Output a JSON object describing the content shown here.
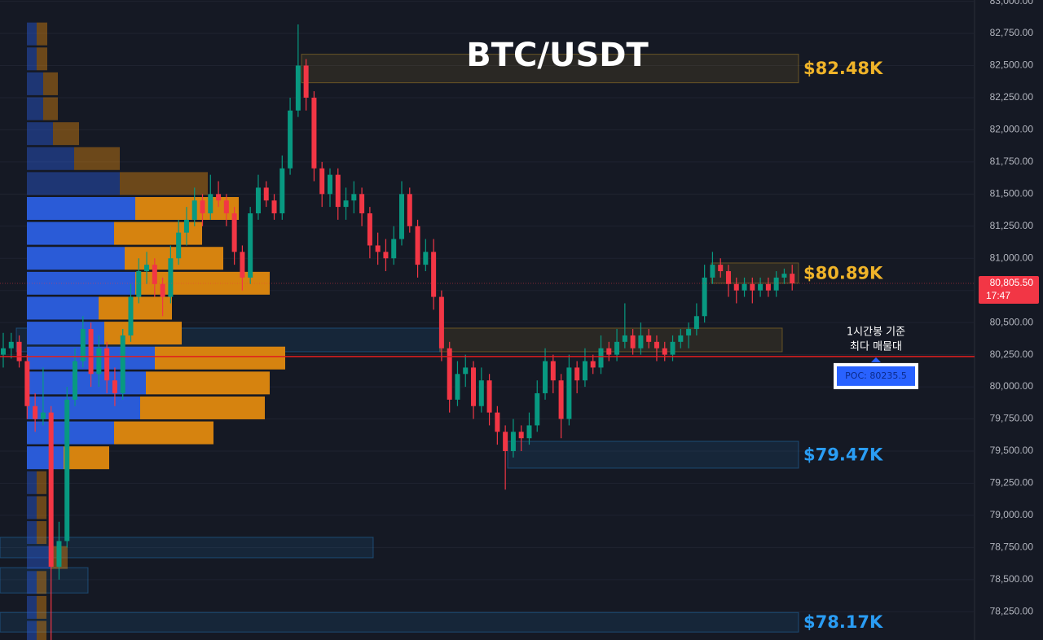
{
  "chart_data": {
    "type": "candlestick",
    "title": "BTC/USDT",
    "ylim": [
      78030,
      83010
    ],
    "yticks": [
      {
        "value": 83000,
        "label": "83,000.00"
      },
      {
        "value": 82750,
        "label": "82,750.00"
      },
      {
        "value": 82500,
        "label": "82,500.00"
      },
      {
        "value": 82250,
        "label": "82,250.00"
      },
      {
        "value": 82000,
        "label": "82,000.00"
      },
      {
        "value": 81750,
        "label": "81,750.00"
      },
      {
        "value": 81500,
        "label": "81,500.00"
      },
      {
        "value": 81250,
        "label": "81,250.00"
      },
      {
        "value": 81000,
        "label": "81,000.00"
      },
      {
        "value": 80750,
        "label": "80,750.00"
      },
      {
        "value": 80500,
        "label": "80,500.00"
      },
      {
        "value": 80250,
        "label": "80,250.00"
      },
      {
        "value": 80000,
        "label": "80,000.00"
      },
      {
        "value": 79750,
        "label": "79,750.00"
      },
      {
        "value": 79500,
        "label": "79,500.00"
      },
      {
        "value": 79250,
        "label": "79,250.00"
      },
      {
        "value": 79000,
        "label": "79,000.00"
      },
      {
        "value": 78750,
        "label": "78,750.00"
      },
      {
        "value": 78500,
        "label": "78,500.00"
      },
      {
        "value": 78250,
        "label": "78,250.00"
      }
    ],
    "grid": true,
    "up_color": "#089981",
    "down_color": "#f23645",
    "candles": [
      [
        80250,
        80420,
        80150,
        80300
      ],
      [
        80300,
        80420,
        80220,
        80350
      ],
      [
        80350,
        80400,
        80150,
        80200
      ],
      [
        80200,
        80250,
        79750,
        79850
      ],
      [
        79850,
        79950,
        79650,
        79750
      ],
      [
        79750,
        80150,
        79700,
        79800
      ],
      [
        79800,
        79850,
        78030,
        78600
      ],
      [
        78600,
        78950,
        78500,
        78800
      ],
      [
        78800,
        80000,
        78750,
        79900
      ],
      [
        79900,
        80300,
        79850,
        80200
      ],
      [
        80200,
        80550,
        80150,
        80450
      ],
      [
        80450,
        80500,
        80000,
        80100
      ],
      [
        80100,
        80400,
        80000,
        80300
      ],
      [
        80300,
        80350,
        79950,
        80050
      ],
      [
        80050,
        80150,
        79850,
        79950
      ],
      [
        79950,
        80450,
        79900,
        80400
      ],
      [
        80400,
        80800,
        80350,
        80700
      ],
      [
        80700,
        81000,
        80650,
        80900
      ],
      [
        80900,
        81050,
        80800,
        80950
      ],
      [
        80950,
        81000,
        80700,
        80800
      ],
      [
        80800,
        80850,
        80550,
        80700
      ],
      [
        80700,
        81100,
        80650,
        81000
      ],
      [
        81000,
        81300,
        80950,
        81200
      ],
      [
        81200,
        81400,
        81100,
        81300
      ],
      [
        81300,
        81550,
        81250,
        81450
      ],
      [
        81450,
        81500,
        81250,
        81350
      ],
      [
        81350,
        81650,
        81300,
        81500
      ],
      [
        81500,
        81600,
        81400,
        81450
      ],
      [
        81450,
        81500,
        81250,
        81350
      ],
      [
        81350,
        81400,
        80950,
        81050
      ],
      [
        81050,
        81100,
        80750,
        80850
      ],
      [
        80850,
        81400,
        80800,
        81350
      ],
      [
        81350,
        81650,
        81300,
        81550
      ],
      [
        81550,
        81600,
        81400,
        81450
      ],
      [
        81450,
        81500,
        81300,
        81350
      ],
      [
        81350,
        81800,
        81300,
        81700
      ],
      [
        81700,
        82250,
        81650,
        82150
      ],
      [
        82150,
        82820,
        82100,
        82500
      ],
      [
        82500,
        82550,
        82150,
        82250
      ],
      [
        82250,
        82300,
        81600,
        81700
      ],
      [
        81700,
        81750,
        81400,
        81500
      ],
      [
        81500,
        81700,
        81400,
        81650
      ],
      [
        81650,
        81700,
        81300,
        81400
      ],
      [
        81400,
        81550,
        81300,
        81450
      ],
      [
        81450,
        81600,
        81350,
        81500
      ],
      [
        81500,
        81550,
        81250,
        81350
      ],
      [
        81350,
        81400,
        81000,
        81100
      ],
      [
        81100,
        81200,
        80950,
        81050
      ],
      [
        81050,
        81150,
        80900,
        81000
      ],
      [
        81000,
        81250,
        80950,
        81150
      ],
      [
        81150,
        81600,
        81100,
        81500
      ],
      [
        81500,
        81550,
        81200,
        81250
      ],
      [
        81250,
        81300,
        80850,
        80950
      ],
      [
        80950,
        81150,
        80900,
        81050
      ],
      [
        81050,
        81150,
        80600,
        80700
      ],
      [
        80700,
        80750,
        80200,
        80300
      ],
      [
        80300,
        80350,
        79800,
        79900
      ],
      [
        79900,
        80200,
        79850,
        80100
      ],
      [
        80100,
        80250,
        80000,
        80150
      ],
      [
        80150,
        80200,
        79750,
        79850
      ],
      [
        79850,
        80150,
        79800,
        80050
      ],
      [
        80050,
        80100,
        79700,
        79800
      ],
      [
        79800,
        79850,
        79550,
        79650
      ],
      [
        79650,
        79700,
        79200,
        79500
      ],
      [
        79500,
        79750,
        79450,
        79650
      ],
      [
        79650,
        79700,
        79500,
        79600
      ],
      [
        79600,
        79800,
        79550,
        79700
      ],
      [
        79700,
        80050,
        79650,
        79950
      ],
      [
        79950,
        80300,
        79900,
        80200
      ],
      [
        80200,
        80250,
        79950,
        80050
      ],
      [
        80050,
        80100,
        79600,
        79750
      ],
      [
        79750,
        80250,
        79700,
        80150
      ],
      [
        80150,
        80200,
        79950,
        80050
      ],
      [
        80050,
        80300,
        80000,
        80200
      ],
      [
        80200,
        80250,
        80100,
        80150
      ],
      [
        80150,
        80400,
        80100,
        80300
      ],
      [
        80300,
        80350,
        80200,
        80250
      ],
      [
        80250,
        80450,
        80200,
        80350
      ],
      [
        80350,
        80650,
        80300,
        80400
      ],
      [
        80400,
        80450,
        80250,
        80300
      ],
      [
        80300,
        80500,
        80250,
        80400
      ],
      [
        80400,
        80450,
        80300,
        80350
      ],
      [
        80350,
        80400,
        80200,
        80300
      ],
      [
        80300,
        80350,
        80200,
        80250
      ],
      [
        80250,
        80400,
        80200,
        80350
      ],
      [
        80350,
        80450,
        80300,
        80400
      ],
      [
        80400,
        80500,
        80300,
        80450
      ],
      [
        80450,
        80650,
        80400,
        80550
      ],
      [
        80550,
        80950,
        80500,
        80850
      ],
      [
        80850,
        81050,
        80800,
        80950
      ],
      [
        80950,
        81000,
        80850,
        80900
      ],
      [
        80900,
        80950,
        80700,
        80800
      ],
      [
        80800,
        80850,
        80650,
        80750
      ],
      [
        80750,
        80850,
        80700,
        80800
      ],
      [
        80800,
        80850,
        80650,
        80750
      ],
      [
        80750,
        80850,
        80700,
        80800
      ],
      [
        80800,
        80850,
        80700,
        80750
      ],
      [
        80750,
        80900,
        80700,
        80850
      ],
      [
        80850,
        80920,
        80800,
        80880
      ],
      [
        80880,
        80950,
        80750,
        80805.5
      ]
    ],
    "volume_profile": {
      "buy_color": "#2a5bd7",
      "sell_color": "#d6830f",
      "rows": [
        {
          "price": 82746,
          "buy": 12,
          "sell": 13
        },
        {
          "price": 82552,
          "buy": 12,
          "sell": 13
        },
        {
          "price": 82358,
          "buy": 20,
          "sell": 18
        },
        {
          "price": 82164,
          "buy": 20,
          "sell": 18
        },
        {
          "price": 81970,
          "buy": 32,
          "sell": 32
        },
        {
          "price": 81776,
          "buy": 58,
          "sell": 56
        },
        {
          "price": 81582,
          "buy": 114,
          "sell": 108
        },
        {
          "price": 81388,
          "buy": 133,
          "sell": 127
        },
        {
          "price": 81194,
          "buy": 107,
          "sell": 108
        },
        {
          "price": 81000,
          "buy": 120,
          "sell": 121
        },
        {
          "price": 80806,
          "buy": 133,
          "sell": 165
        },
        {
          "price": 80612,
          "buy": 88,
          "sell": 90
        },
        {
          "price": 80418,
          "buy": 95,
          "sell": 95
        },
        {
          "price": 80224,
          "buy": 157,
          "sell": 160
        },
        {
          "price": 80030,
          "buy": 146,
          "sell": 152
        },
        {
          "price": 79836,
          "buy": 139,
          "sell": 153
        },
        {
          "price": 79642,
          "buy": 107,
          "sell": 122
        },
        {
          "price": 79448,
          "buy": 45,
          "sell": 56
        },
        {
          "price": 79254,
          "buy": 12,
          "sell": 12
        },
        {
          "price": 79060,
          "buy": 12,
          "sell": 12
        },
        {
          "price": 78866,
          "buy": 12,
          "sell": 12
        },
        {
          "price": 78672,
          "buy": 30,
          "sell": 20
        },
        {
          "price": 78478,
          "buy": 12,
          "sell": 12
        },
        {
          "price": 78284,
          "buy": 12,
          "sell": 12
        },
        {
          "price": 78090,
          "buy": 12,
          "sell": 12
        }
      ]
    },
    "zones": [
      {
        "label": "$82.48K",
        "value": 82480,
        "low": 82366,
        "high": 82588,
        "color": "#f0b429"
      },
      {
        "label": "$80.89K",
        "value": 80890,
        "low": 80806,
        "high": 80964,
        "color": "#f0b429"
      },
      {
        "low": 80273,
        "high": 80457,
        "color": "#2a9df4"
      },
      {
        "low": 80273,
        "high": 80457,
        "color": "#f0b429"
      },
      {
        "label": "$79.47K",
        "value": 79470,
        "low": 79367,
        "high": 79576,
        "color": "#2a9df4"
      },
      {
        "label": "$78.17K",
        "value": 78170,
        "low": 78092,
        "high": 78244,
        "color": "#2a9df4"
      },
      {
        "low": 78670,
        "high": 78829,
        "color": "#2a9df4"
      },
      {
        "low": 78396,
        "high": 78593,
        "color": "#2a9df4"
      }
    ],
    "poc": {
      "value": 80235.5,
      "label": "POC: 80235.5",
      "color": "#e01e1e"
    },
    "annotation": [
      "1시간봉 기준",
      "최다 매물대"
    ],
    "last_price": {
      "value": 80805.5,
      "label": "80,805.50",
      "countdown": "17:47",
      "color": "#f23645"
    }
  }
}
